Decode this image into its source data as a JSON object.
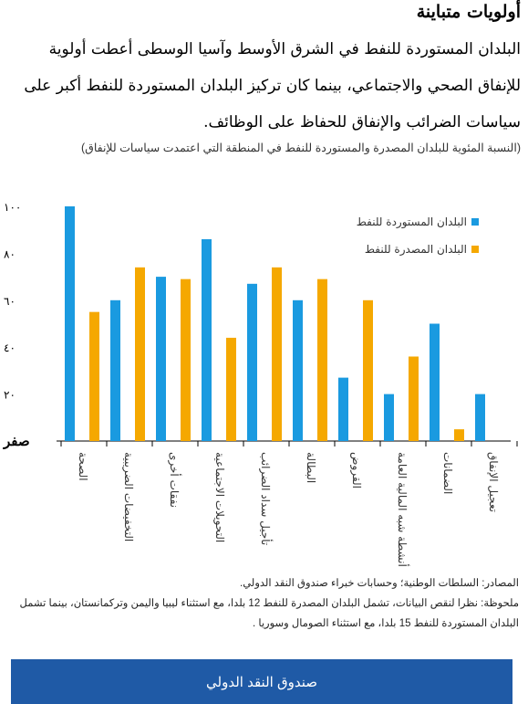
{
  "header": {
    "title": "أولويات متباينة",
    "paragraph": "البلدان المستوردة للنفط في الشرق الأوسط وآسيا الوسطى أعطت أولوية للإنفاق الصحي والاجتماعي، بينما كان تركيز البلدان المستوردة للنفط أكبر على سياسات الضرائب والإنفاق للحفاظ على الوظائف."
  },
  "chart_data": {
    "type": "bar",
    "subtitle": "(النسبة المئوية للبلدان المصدرة والمستوردة للنفط في المنطقة التي اعتمدت سياسات للإنفاق)",
    "categories": [
      "الصحة",
      "التخفيضات الضريبية",
      "نفقات أخرى",
      "التحويلات الاجتماعية",
      "تأجيل سداد الضرائب",
      "البطالة",
      "القروض",
      "أنشطة شبه المالية العامة",
      "الضمانات",
      "تعجيل الإنفاق"
    ],
    "series": [
      {
        "name": "البلدان المستوردة للنفط",
        "color": "#1a9ae0",
        "values": [
          100,
          60,
          70,
          86,
          67,
          60,
          27,
          20,
          50,
          20
        ]
      },
      {
        "name": "البلدان المصدرة للنفط",
        "color": "#f5a800",
        "values": [
          55,
          74,
          69,
          44,
          74,
          69,
          60,
          36,
          5,
          0
        ]
      }
    ],
    "yticks": [
      "صفر",
      "٢٠",
      "٤٠",
      "٦٠",
      "٨٠",
      "١٠٠"
    ],
    "ylim": [
      0,
      100
    ],
    "legend_position": "top-right",
    "grid": false
  },
  "notes": {
    "sources": "المصادر: السلطات الوطنية؛ وحسابات خبراء صندوق النقد الدولي.",
    "note_line1": "ملحوظة: نظرا لنقص البيانات، تشمل البلدان المصدرة للنفط 12 بلدا، مع استثناء ليبيا واليمن وتركمانستان، بينما تشمل",
    "note_line2": "البلدان المستوردة للنفط 15 بلدا، مع استثناء الصومال وسوريا ."
  },
  "footer": {
    "label": "صندوق النقد الدولي"
  }
}
